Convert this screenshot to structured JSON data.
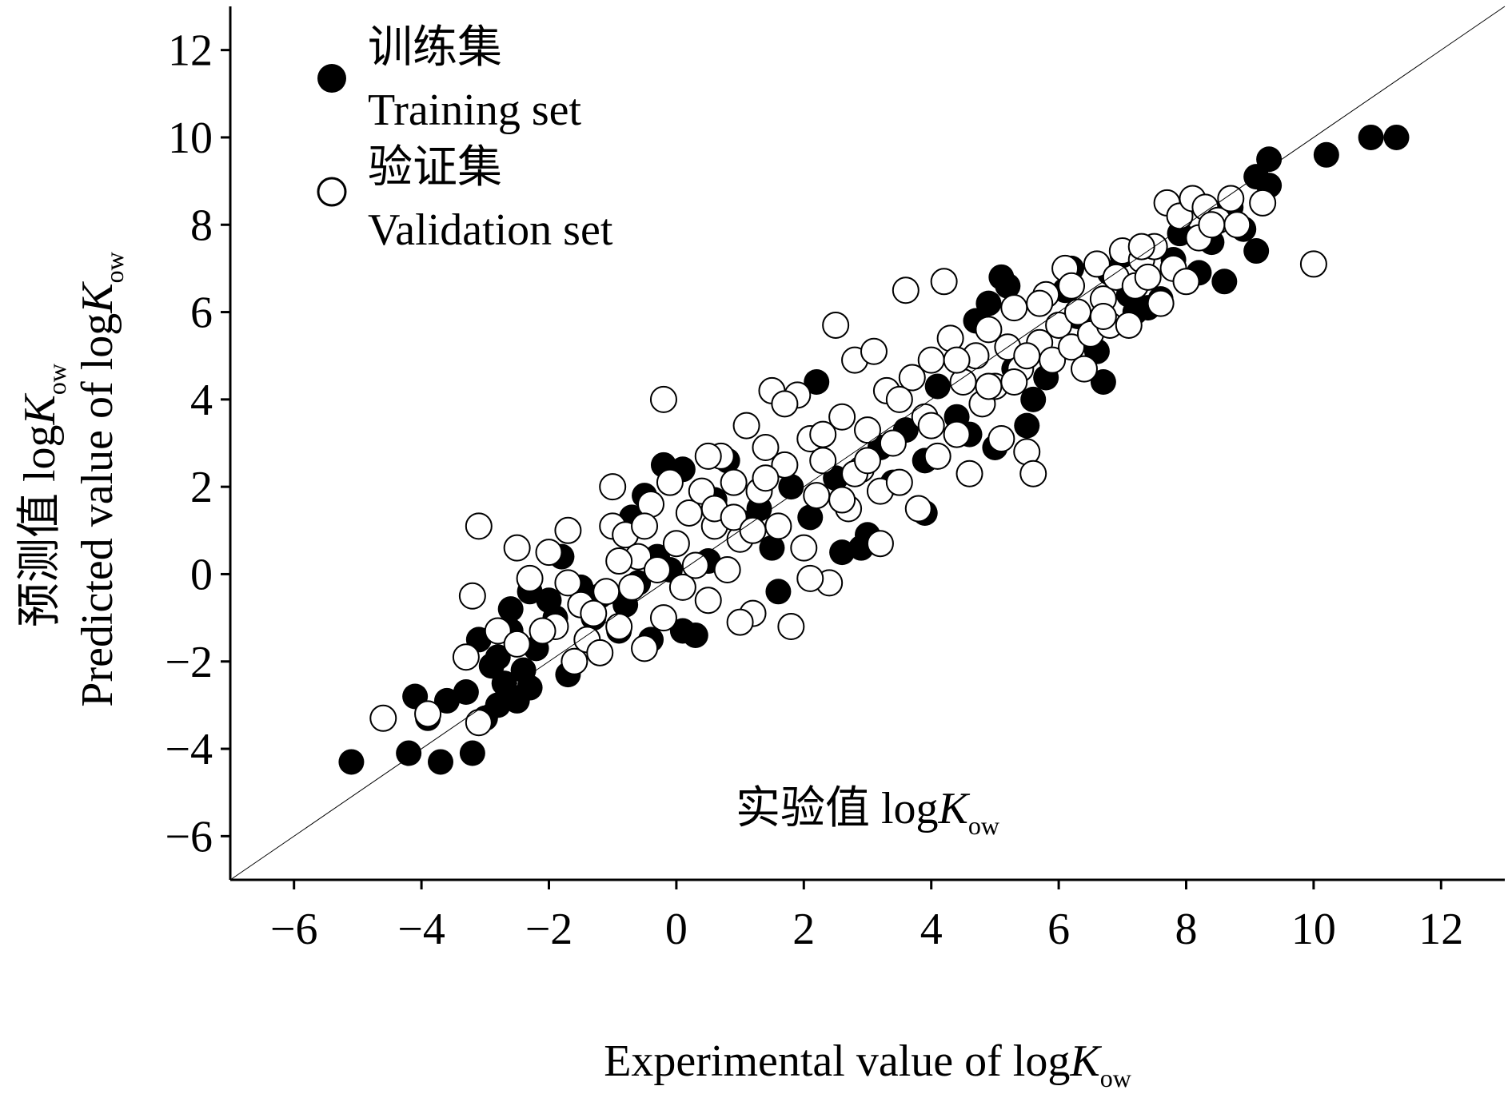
{
  "chart_data": {
    "type": "scatter",
    "xlim": [
      -7,
      13
    ],
    "ylim": [
      -7,
      13
    ],
    "x_ticks": [
      -6,
      -4,
      -2,
      0,
      2,
      4,
      6,
      8,
      10,
      12
    ],
    "y_ticks": [
      -6,
      -4,
      -2,
      0,
      2,
      4,
      6,
      8,
      10,
      12
    ],
    "x_tick_labels": [
      "−6",
      "−4",
      "−2",
      "0",
      "2",
      "4",
      "6",
      "8",
      "10",
      "12"
    ],
    "y_tick_labels": [
      "−6",
      "−4",
      "−2",
      "0",
      "2",
      "4",
      "6",
      "8",
      "10",
      "12"
    ],
    "xlabel": {
      "line1_cn": "实验值 log",
      "line1_k": "K",
      "line1_sub": "ow",
      "line2": "Experimental value of log",
      "line2_k": "K",
      "line2_sub": "ow"
    },
    "ylabel": {
      "line1_cn": "预测值 log",
      "line1_k": "K",
      "line1_sub": "ow",
      "line2": "Predicted value of log",
      "line2_k": "K",
      "line2_sub": "ow"
    },
    "grid": false,
    "legend_position": "top-left",
    "reference_line": {
      "from": [
        -7,
        -7
      ],
      "to": [
        13,
        13
      ],
      "color": "#000000"
    },
    "series": [
      {
        "name_cn": "训练集",
        "name": "Training set",
        "marker": "filled-circle",
        "color": "#000000",
        "points": [
          [
            -5.1,
            -4.3
          ],
          [
            -4.2,
            -4.1
          ],
          [
            -3.7,
            -4.3
          ],
          [
            -3.2,
            -4.1
          ],
          [
            -4.1,
            -2.8
          ],
          [
            -3.6,
            -2.9
          ],
          [
            -3.9,
            -3.3
          ],
          [
            -3.3,
            -2.7
          ],
          [
            -3.0,
            -3.3
          ],
          [
            -2.8,
            -3.0
          ],
          [
            -2.7,
            -2.5
          ],
          [
            -2.6,
            -2.8
          ],
          [
            -2.5,
            -2.9
          ],
          [
            -2.9,
            -2.1
          ],
          [
            -3.1,
            -1.5
          ],
          [
            -2.8,
            -1.9
          ],
          [
            -2.6,
            -1.3
          ],
          [
            -2.4,
            -2.2
          ],
          [
            -2.3,
            -2.6
          ],
          [
            -2.2,
            -1.7
          ],
          [
            -2.6,
            -0.8
          ],
          [
            -2.3,
            -0.4
          ],
          [
            -2.0,
            -0.6
          ],
          [
            -1.9,
            -1.0
          ],
          [
            -1.7,
            -2.3
          ],
          [
            -1.5,
            -0.3
          ],
          [
            -1.3,
            -1.0
          ],
          [
            -1.2,
            -0.5
          ],
          [
            -0.9,
            -1.3
          ],
          [
            -0.8,
            -0.7
          ],
          [
            -0.6,
            -0.2
          ],
          [
            -0.4,
            -1.5
          ],
          [
            -0.3,
            0.4
          ],
          [
            -0.1,
            0.1
          ],
          [
            0.1,
            -1.3
          ],
          [
            0.3,
            -1.4
          ],
          [
            0.5,
            0.3
          ],
          [
            -0.2,
            2.5
          ],
          [
            0.1,
            2.4
          ],
          [
            -0.5,
            1.8
          ],
          [
            0.6,
            1.7
          ],
          [
            1.0,
            1.2
          ],
          [
            1.3,
            1.5
          ],
          [
            1.5,
            0.6
          ],
          [
            1.8,
            2.0
          ],
          [
            2.1,
            1.3
          ],
          [
            2.2,
            4.4
          ],
          [
            2.5,
            2.2
          ],
          [
            2.7,
            1.5
          ],
          [
            2.9,
            0.6
          ],
          [
            3.2,
            2.9
          ],
          [
            3.4,
            2.1
          ],
          [
            3.6,
            3.3
          ],
          [
            3.9,
            2.6
          ],
          [
            4.1,
            4.3
          ],
          [
            4.4,
            3.6
          ],
          [
            4.7,
            5.8
          ],
          [
            4.9,
            6.2
          ],
          [
            5.1,
            6.8
          ],
          [
            5.2,
            6.6
          ],
          [
            5.3,
            4.7
          ],
          [
            5.5,
            3.4
          ],
          [
            5.6,
            4.0
          ],
          [
            5.8,
            4.5
          ],
          [
            6.1,
            6.5
          ],
          [
            6.3,
            5.9
          ],
          [
            6.6,
            5.1
          ],
          [
            6.7,
            4.4
          ],
          [
            6.8,
            6.9
          ],
          [
            7.0,
            7.3
          ],
          [
            7.1,
            6.4
          ],
          [
            7.2,
            6.0
          ],
          [
            7.4,
            6.1
          ],
          [
            7.6,
            6.3
          ],
          [
            7.5,
            7.5
          ],
          [
            7.8,
            7.2
          ],
          [
            7.9,
            7.8
          ],
          [
            8.2,
            6.9
          ],
          [
            8.4,
            7.6
          ],
          [
            8.6,
            6.7
          ],
          [
            8.7,
            8.4
          ],
          [
            8.9,
            7.9
          ],
          [
            9.1,
            7.4
          ],
          [
            9.1,
            9.1
          ],
          [
            9.3,
            9.5
          ],
          [
            9.3,
            8.9
          ],
          [
            10.2,
            9.6
          ],
          [
            10.9,
            10.0
          ],
          [
            11.3,
            10.0
          ],
          [
            1.6,
            -0.4
          ],
          [
            2.6,
            0.5
          ],
          [
            3.0,
            0.9
          ],
          [
            4.6,
            3.2
          ],
          [
            3.9,
            1.4
          ],
          [
            -1.8,
            0.4
          ],
          [
            -0.7,
            1.3
          ],
          [
            0.8,
            2.6
          ],
          [
            5.0,
            2.9
          ],
          [
            6.2,
            7.0
          ]
        ]
      },
      {
        "name_cn": "验证集",
        "name": "Validation set",
        "marker": "open-circle",
        "color": "#000000",
        "points": [
          [
            -4.6,
            -3.3
          ],
          [
            -3.9,
            -3.2
          ],
          [
            -3.2,
            -0.5
          ],
          [
            -3.1,
            1.1
          ],
          [
            -3.3,
            -1.9
          ],
          [
            -3.1,
            -3.4
          ],
          [
            -2.8,
            -1.3
          ],
          [
            -2.5,
            0.6
          ],
          [
            -2.5,
            -1.6
          ],
          [
            -2.3,
            -0.1
          ],
          [
            -2.0,
            0.5
          ],
          [
            -1.9,
            -1.2
          ],
          [
            -1.7,
            -0.2
          ],
          [
            -1.6,
            -2.0
          ],
          [
            -1.5,
            -0.7
          ],
          [
            -1.4,
            -1.5
          ],
          [
            -1.2,
            -1.8
          ],
          [
            -1.1,
            -0.4
          ],
          [
            -1.0,
            2.0
          ],
          [
            -1.0,
            1.1
          ],
          [
            -0.9,
            -1.2
          ],
          [
            -0.8,
            0.9
          ],
          [
            -0.7,
            -0.3
          ],
          [
            -0.6,
            0.4
          ],
          [
            -0.5,
            -1.7
          ],
          [
            -0.4,
            1.6
          ],
          [
            -0.3,
            0.1
          ],
          [
            -0.2,
            4.0
          ],
          [
            -0.2,
            -1.0
          ],
          [
            -0.1,
            2.1
          ],
          [
            0.0,
            0.7
          ],
          [
            0.1,
            -0.3
          ],
          [
            0.2,
            1.4
          ],
          [
            0.3,
            0.2
          ],
          [
            0.4,
            1.9
          ],
          [
            0.5,
            -0.6
          ],
          [
            0.6,
            1.1
          ],
          [
            0.7,
            2.7
          ],
          [
            0.8,
            0.1
          ],
          [
            0.9,
            2.1
          ],
          [
            1.0,
            0.8
          ],
          [
            1.1,
            3.4
          ],
          [
            1.2,
            -0.9
          ],
          [
            1.3,
            1.9
          ],
          [
            1.4,
            2.9
          ],
          [
            1.5,
            4.2
          ],
          [
            1.6,
            1.1
          ],
          [
            1.7,
            2.5
          ],
          [
            1.8,
            -1.2
          ],
          [
            1.9,
            4.1
          ],
          [
            2.0,
            0.6
          ],
          [
            2.1,
            3.1
          ],
          [
            2.2,
            1.8
          ],
          [
            2.3,
            2.6
          ],
          [
            2.4,
            -0.2
          ],
          [
            2.5,
            5.7
          ],
          [
            2.6,
            3.6
          ],
          [
            2.7,
            1.5
          ],
          [
            2.8,
            4.9
          ],
          [
            2.9,
            2.4
          ],
          [
            3.0,
            3.3
          ],
          [
            3.1,
            5.1
          ],
          [
            3.2,
            1.9
          ],
          [
            3.3,
            4.2
          ],
          [
            3.4,
            3.0
          ],
          [
            3.5,
            2.1
          ],
          [
            3.6,
            6.5
          ],
          [
            3.7,
            4.5
          ],
          [
            3.8,
            1.5
          ],
          [
            3.9,
            3.6
          ],
          [
            4.0,
            4.9
          ],
          [
            4.1,
            2.7
          ],
          [
            4.2,
            6.7
          ],
          [
            4.3,
            5.4
          ],
          [
            4.4,
            3.2
          ],
          [
            4.5,
            4.4
          ],
          [
            4.6,
            2.3
          ],
          [
            4.7,
            5.0
          ],
          [
            4.8,
            3.9
          ],
          [
            4.9,
            5.6
          ],
          [
            5.0,
            4.3
          ],
          [
            5.1,
            3.1
          ],
          [
            5.2,
            5.2
          ],
          [
            5.3,
            6.1
          ],
          [
            5.4,
            4.7
          ],
          [
            5.5,
            2.8
          ],
          [
            5.6,
            2.3
          ],
          [
            5.7,
            5.3
          ],
          [
            5.8,
            6.4
          ],
          [
            5.9,
            4.9
          ],
          [
            6.0,
            5.7
          ],
          [
            6.1,
            7.0
          ],
          [
            6.2,
            5.2
          ],
          [
            6.3,
            6.0
          ],
          [
            6.4,
            4.7
          ],
          [
            6.5,
            5.5
          ],
          [
            6.6,
            7.1
          ],
          [
            6.7,
            6.3
          ],
          [
            6.8,
            5.7
          ],
          [
            6.9,
            6.8
          ],
          [
            7.0,
            7.4
          ],
          [
            7.1,
            5.7
          ],
          [
            7.2,
            6.6
          ],
          [
            7.3,
            7.2
          ],
          [
            7.4,
            6.8
          ],
          [
            7.5,
            7.5
          ],
          [
            7.6,
            6.2
          ],
          [
            7.7,
            8.5
          ],
          [
            7.8,
            7.0
          ],
          [
            7.9,
            8.2
          ],
          [
            8.0,
            6.7
          ],
          [
            8.1,
            8.6
          ],
          [
            8.2,
            7.7
          ],
          [
            8.3,
            8.4
          ],
          [
            8.5,
            8.1
          ],
          [
            8.7,
            8.6
          ],
          [
            8.8,
            8.0
          ],
          [
            9.2,
            8.5
          ],
          [
            10.0,
            7.1
          ],
          [
            -1.7,
            1.0
          ],
          [
            0.5,
            2.7
          ],
          [
            1.7,
            3.9
          ],
          [
            3.2,
            0.7
          ],
          [
            2.1,
            -0.1
          ],
          [
            -0.5,
            1.1
          ],
          [
            1.0,
            -1.1
          ],
          [
            2.8,
            2.3
          ],
          [
            4.0,
            3.4
          ],
          [
            5.3,
            4.4
          ],
          [
            6.7,
            5.9
          ],
          [
            3.0,
            2.6
          ],
          [
            1.4,
            2.2
          ],
          [
            0.6,
            1.5
          ],
          [
            -0.9,
            0.3
          ],
          [
            4.4,
            4.9
          ],
          [
            5.7,
            6.2
          ],
          [
            6.2,
            6.6
          ],
          [
            7.3,
            7.5
          ],
          [
            8.4,
            8.0
          ],
          [
            2.3,
            3.2
          ],
          [
            3.5,
            4.0
          ],
          [
            0.9,
            1.3
          ],
          [
            -1.3,
            -0.9
          ],
          [
            -2.1,
            -1.3
          ],
          [
            4.9,
            4.3
          ],
          [
            5.5,
            5.0
          ],
          [
            2.6,
            1.7
          ],
          [
            1.2,
            1.0
          ]
        ]
      }
    ],
    "legend": [
      {
        "cn": "训练集",
        "en": "Training set"
      },
      {
        "cn": "验证集",
        "en": "Validation set"
      }
    ]
  }
}
